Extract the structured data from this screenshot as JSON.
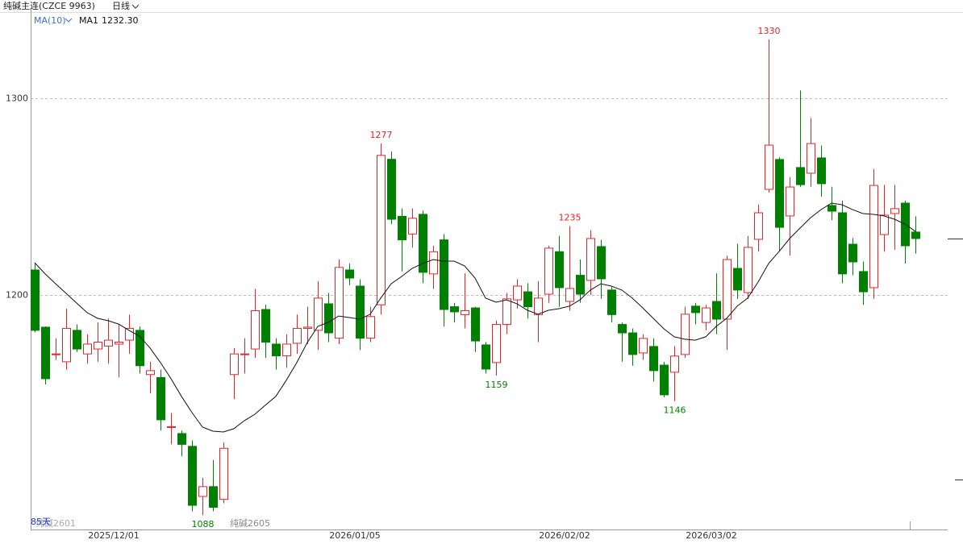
{
  "header": {
    "title": "纯碱主连(CZCE 9963)",
    "period": "日线"
  },
  "chart_data": {
    "type": "candlestick",
    "indicator": "MA(10)",
    "day_count": "85天",
    "contract_labels": [
      "纯碱2601",
      "纯碱2605"
    ],
    "up_color": "#e0262a",
    "down_color": "#008000",
    "grid": true,
    "ylim": [
      1080.7,
      1345.1
    ],
    "yticks": [
      1200,
      1300
    ],
    "categories": [
      null,
      null,
      null,
      null,
      null,
      null,
      null,
      null,
      "2025/12/01",
      null,
      null,
      null,
      null,
      null,
      null,
      null,
      null,
      null,
      null,
      null,
      null,
      null,
      null,
      null,
      null,
      null,
      null,
      null,
      null,
      null,
      null,
      "2026/01/05",
      null,
      null,
      null,
      null,
      null,
      null,
      null,
      null,
      null,
      null,
      null,
      null,
      null,
      null,
      null,
      null,
      null,
      null,
      null,
      "2026/02/02",
      null,
      null,
      null,
      null,
      null,
      null,
      null,
      null,
      null,
      null,
      null,
      null,
      null,
      "2026/03/02",
      null,
      null,
      null,
      null,
      null,
      null,
      null,
      null,
      null,
      null,
      null,
      null,
      null,
      null,
      null,
      null,
      null,
      null,
      null
    ],
    "open": [
      1212.7,
      1183.6,
      1170,
      1166,
      1182,
      1170,
      1172.5,
      1174,
      1175,
      1177,
      1182,
      1159.5,
      1158,
      1133,
      1129.5,
      1123,
      1097.5,
      1102.5,
      1096,
      1159.5,
      1170,
      1172.5,
      1192.6,
      1175,
      1169,
      1175.4,
      1183,
      1182,
      1195.5,
      1178,
      1212.7,
      1204.5,
      1178,
      1195,
      1269,
      1240,
      1231,
      1241,
      1210.7,
      1228,
      1194,
      1190,
      1193.4,
      1174.6,
      1165.6,
      1185,
      1197.5,
      1201.6,
      1190,
      1200.4,
      1222,
      1196.7,
      1210,
      1207.4,
      1224.6,
      1202.5,
      1185,
      1180.7,
      1170.5,
      1173.8,
      1164.3,
      1160.7,
      1169.7,
      1194.3,
      1186,
      1196.7,
      1187.7,
      1213.5,
      1201.2,
      1228.3,
      1253.7,
      1268.9,
      1240.2,
      1264.8,
      1261.9,
      1269.7,
      1245.5,
      1241.8,
      1225.8,
      1211.9,
      1203.7,
      1230.7,
      1241.4,
      1246.7,
      1232
    ],
    "high": [
      1216,
      1184,
      1178,
      1193,
      1185,
      1180,
      1186,
      1188,
      1185,
      1190,
      1184,
      1166,
      1162,
      1140,
      1131,
      1126,
      1107,
      1116,
      1125,
      1173,
      1178,
      1203,
      1195,
      1178,
      1180,
      1190,
      1194,
      1207,
      1201,
      1218,
      1216,
      1208,
      1194,
      1277,
      1273,
      1244,
      1244,
      1243,
      1225,
      1231,
      1196,
      1211,
      1194,
      1176,
      1187,
      1201,
      1208,
      1206,
      1207,
      1225,
      1230,
      1235,
      1218,
      1233,
      1228,
      1204,
      1186,
      1183,
      1180,
      1178,
      1166,
      1174,
      1194,
      1196,
      1195,
      1211,
      1220,
      1226,
      1230,
      1246,
      1330,
      1270,
      1260,
      1304,
      1290,
      1276,
      1255,
      1248,
      1229,
      1217,
      1264,
      1256,
      1256,
      1248,
      1240
    ],
    "low": [
      1181,
      1154.5,
      1167,
      1162,
      1171,
      1165,
      1166,
      1165,
      1158,
      1170,
      1160,
      1150,
      1131,
      1124,
      1118,
      1090,
      1088,
      1090,
      1094,
      1147,
      1160,
      1168,
      1168,
      1162,
      1163,
      1170,
      1175,
      1172,
      1176,
      1175,
      1205,
      1172,
      1176,
      1190,
      1236,
      1212,
      1224,
      1206,
      1203,
      1184,
      1186,
      1183,
      1171,
      1160,
      1159,
      1180,
      1193,
      1188,
      1176,
      1196,
      1194,
      1192,
      1196,
      1200,
      1198,
      1186,
      1166,
      1164,
      1167,
      1156,
      1148,
      1146,
      1168,
      1185,
      1182,
      1180,
      1172,
      1198,
      1198,
      1222,
      1252,
      1222,
      1220,
      1255,
      1255,
      1250,
      1238,
      1206,
      1210,
      1195,
      1198,
      1222,
      1223,
      1216,
      1221
    ],
    "close": [
      1182,
      1157.4,
      1170,
      1183,
      1172.5,
      1175,
      1176,
      1177,
      1176,
      1183,
      1164,
      1161.5,
      1136.5,
      1133,
      1124,
      1093,
      1102.5,
      1092,
      1122,
      1170,
      1170,
      1192,
      1176,
      1169,
      1175,
      1183,
      1183.6,
      1198.4,
      1180.7,
      1214,
      1208.6,
      1178,
      1189,
      1271,
      1238.5,
      1228,
      1239,
      1211.5,
      1222,
      1192.6,
      1191.4,
      1192,
      1176.6,
      1162.3,
      1185,
      1198,
      1204.5,
      1194,
      1198.4,
      1223.8,
      1203.7,
      1203.3,
      1200.4,
      1228.7,
      1208.2,
      1190,
      1180.7,
      1169.7,
      1177.9,
      1161.5,
      1149.2,
      1168.9,
      1190.2,
      1191,
      1193.4,
      1187.7,
      1218,
      1202.5,
      1224.2,
      1241.8,
      1276.2,
      1234.4,
      1254.9,
      1256.1,
      1277,
      1256.6,
      1242.6,
      1210.7,
      1216.8,
      1201.6,
      1255.7,
      1240.6,
      1243.9,
      1225,
      1228.7
    ],
    "high_labels": [
      null,
      null,
      null,
      null,
      null,
      null,
      null,
      null,
      null,
      null,
      null,
      null,
      null,
      null,
      null,
      null,
      null,
      null,
      null,
      null,
      null,
      null,
      null,
      null,
      null,
      null,
      null,
      null,
      null,
      null,
      null,
      null,
      null,
      "1277",
      null,
      null,
      null,
      null,
      null,
      null,
      null,
      null,
      null,
      null,
      null,
      null,
      null,
      null,
      null,
      null,
      null,
      "1235",
      null,
      null,
      null,
      null,
      null,
      null,
      null,
      null,
      null,
      null,
      null,
      null,
      null,
      null,
      null,
      null,
      null,
      null,
      "1330",
      null,
      null,
      null,
      null,
      null,
      null,
      null,
      null,
      null,
      null,
      null,
      null,
      null,
      null
    ],
    "low_labels": [
      null,
      null,
      null,
      null,
      null,
      null,
      null,
      null,
      null,
      null,
      null,
      null,
      null,
      null,
      null,
      null,
      "1088",
      null,
      null,
      null,
      null,
      null,
      null,
      null,
      null,
      null,
      null,
      null,
      null,
      null,
      null,
      null,
      null,
      null,
      null,
      null,
      null,
      null,
      null,
      null,
      null,
      null,
      null,
      null,
      "1159",
      null,
      null,
      null,
      null,
      null,
      null,
      null,
      null,
      null,
      null,
      null,
      null,
      null,
      null,
      null,
      null,
      "1146",
      null,
      null,
      null,
      null,
      null,
      null,
      null,
      null,
      null,
      null,
      null,
      null,
      null,
      null,
      null,
      null,
      null,
      null,
      null,
      null,
      null,
      null,
      null
    ],
    "ma": {
      "name": "MA1",
      "value_label": "1232.30",
      "color": "#111111",
      "values": [
        1216.4,
        1210.7,
        1205.7,
        1200.8,
        1195.9,
        1191.0,
        1188.1,
        1186.9,
        1185.2,
        1182.0,
        1179.1,
        1173.0,
        1165.6,
        1157.4,
        1148.4,
        1140.2,
        1132.8,
        1130.7,
        1130.3,
        1132.0,
        1136.1,
        1139.3,
        1143.9,
        1148.4,
        1156.6,
        1165.6,
        1175.8,
        1184.0,
        1186.1,
        1189.3,
        1188.5,
        1187.7,
        1190.2,
        1198.4,
        1205.7,
        1209.4,
        1213.5,
        1216.0,
        1218.0,
        1217.2,
        1217.2,
        1214.8,
        1208.6,
        1198.4,
        1196.3,
        1197.5,
        1195.5,
        1192.2,
        1190.2,
        1192.2,
        1193.0,
        1194.3,
        1197.5,
        1202.5,
        1205.7,
        1204.5,
        1202.5,
        1198.4,
        1193.4,
        1188.1,
        1182.8,
        1178.7,
        1177.5,
        1177.0,
        1178.7,
        1184.0,
        1188.1,
        1194.3,
        1198.4,
        1206.6,
        1216.0,
        1222.1,
        1228.7,
        1234.0,
        1239.3,
        1243.4,
        1246.7,
        1245.9,
        1243.4,
        1241.4,
        1241.0,
        1240.2,
        1238.5,
        1236.1,
        1232.3
      ]
    }
  }
}
